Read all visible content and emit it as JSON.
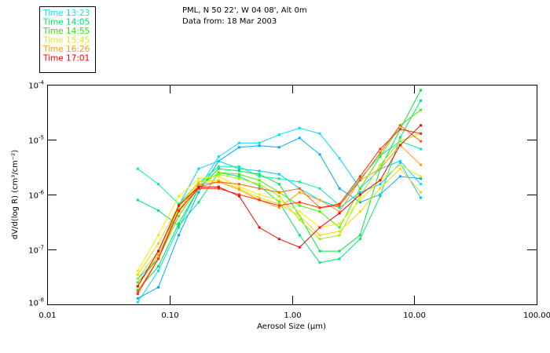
{
  "chart_data": {
    "type": "line",
    "title": "PML, N 50 22', W 04 08', Alt 0m",
    "subtitle": "Data from: 18 Mar 2003",
    "xlabel": "Aerosol Size (µm)",
    "ylabel": "dV/d(log R) (cm³/cm⁻²)",
    "xscale": "log",
    "yscale": "log",
    "xlim": [
      0.01,
      100
    ],
    "ylim_log10": [
      -8,
      -4
    ],
    "xticks": [
      "0.01",
      "0.10",
      "1.00",
      "10.00",
      "100.00"
    ],
    "xtick_values": [
      0.01,
      0.1,
      1,
      10,
      100
    ],
    "yticks": [
      {
        "base": "10",
        "exp": "-4",
        "log10": -4
      },
      {
        "base": "10",
        "exp": "-5",
        "log10": -5
      },
      {
        "base": "10",
        "exp": "-6",
        "log10": -6
      },
      {
        "base": "10",
        "exp": "-7",
        "log10": -7
      },
      {
        "base": "10",
        "exp": "-8",
        "log10": -8
      }
    ],
    "legend_placement": "top-left",
    "legend": [
      {
        "label": "Time 13:23",
        "color": "#00e8e8"
      },
      {
        "label": "Time 14:05",
        "color": "#00e060"
      },
      {
        "label": "Time 14:55",
        "color": "#30e000"
      },
      {
        "label": "Time 15:45",
        "color": "#d8f000"
      },
      {
        "label": "Time 16:26",
        "color": "#ff9a00"
      },
      {
        "label": "Time 17:01",
        "color": "#ff0000"
      }
    ],
    "x": [
      0.055,
      0.081,
      0.119,
      0.173,
      0.252,
      0.371,
      0.542,
      0.787,
      1.156,
      1.69,
      2.45,
      3.61,
      5.27,
      7.67,
      11.3
    ],
    "series_note": "values are log10 of dV/d(log R)",
    "series": [
      {
        "color": "#00ddff",
        "log10_values": [
          -7.96,
          -7.39,
          -6.6,
          -5.89,
          -5.31,
          -5.06,
          -5.06,
          -4.91,
          -4.79,
          -4.89,
          -5.34,
          -5.89,
          -5.53,
          -5.39,
          -5.81
        ]
      },
      {
        "color": "#00a8ff",
        "log10_values": [
          -7.89,
          -7.69,
          -6.74,
          -5.96,
          -5.39,
          -5.14,
          -5.11,
          -5.14,
          -4.97,
          -5.27,
          -5.89,
          -6.14,
          -6.0,
          -5.67,
          -5.71
        ]
      },
      {
        "color": "#00ccff",
        "log10_values": [
          -7.53,
          -7.17,
          -6.2,
          -5.53,
          -5.39,
          -5.53,
          -5.57,
          -5.63,
          -5.89,
          -6.1,
          -6.24,
          -5.96,
          -5.81,
          -5.43,
          -6.06
        ]
      },
      {
        "color": "#00f0a0",
        "log10_values": [
          -5.53,
          -5.81,
          -6.17,
          -5.79,
          -5.49,
          -5.49,
          -5.67,
          -5.71,
          -5.77,
          -5.89,
          -6.2,
          -5.71,
          -5.29,
          -5.03,
          -5.17
        ]
      },
      {
        "color": "#00e878",
        "log10_values": [
          -6.1,
          -6.29,
          -6.57,
          -6.14,
          -5.6,
          -5.67,
          -5.84,
          -6.14,
          -6.74,
          -7.24,
          -7.17,
          -6.81,
          -6.03,
          -4.96,
          -4.29
        ]
      },
      {
        "color": "#00e840",
        "log10_values": [
          -7.74,
          -7.31,
          -6.53,
          -5.89,
          -5.53,
          -5.57,
          -5.63,
          -5.81,
          -6.39,
          -7.03,
          -7.03,
          -6.74,
          -5.53,
          -4.81,
          -4.1
        ]
      },
      {
        "color": "#40f000",
        "log10_values": [
          -7.6,
          -7.17,
          -6.39,
          -5.86,
          -5.6,
          -5.63,
          -5.74,
          -5.96,
          -6.2,
          -6.31,
          -6.6,
          -5.89,
          -5.31,
          -4.74,
          -4.46
        ]
      },
      {
        "color": "#a0f000",
        "log10_values": [
          -7.53,
          -7.03,
          -6.24,
          -5.77,
          -5.63,
          -5.71,
          -5.81,
          -6.03,
          -6.46,
          -6.81,
          -6.74,
          -6.03,
          -5.46,
          -5.03,
          -4.89
        ]
      },
      {
        "color": "#f0f000",
        "log10_values": [
          -7.39,
          -6.74,
          -6.03,
          -5.71,
          -5.67,
          -5.86,
          -6.0,
          -6.1,
          -6.31,
          -6.6,
          -6.53,
          -6.1,
          -5.74,
          -5.46,
          -5.67
        ]
      },
      {
        "color": "#ffd000",
        "log10_values": [
          -7.46,
          -6.89,
          -6.2,
          -5.77,
          -5.74,
          -5.89,
          -6.06,
          -6.17,
          -6.39,
          -6.74,
          -6.67,
          -6.31,
          -5.89,
          -5.53,
          -5.96
        ]
      },
      {
        "color": "#ffa000",
        "log10_values": [
          -7.67,
          -7.1,
          -6.29,
          -5.81,
          -5.77,
          -5.91,
          -6.1,
          -6.24,
          -5.96,
          -6.1,
          -6.31,
          -5.74,
          -5.53,
          -5.1,
          -5.46
        ]
      },
      {
        "color": "#ff6000",
        "log10_values": [
          -7.77,
          -7.17,
          -6.31,
          -5.86,
          -5.77,
          -5.81,
          -5.89,
          -5.96,
          -5.89,
          -6.24,
          -6.2,
          -5.74,
          -5.24,
          -4.74,
          -5.03
        ]
      },
      {
        "color": "#ff3000",
        "log10_values": [
          -7.81,
          -7.17,
          -6.29,
          -5.89,
          -5.89,
          -6.0,
          -6.1,
          -6.2,
          -6.14,
          -6.24,
          -6.17,
          -5.67,
          -5.17,
          -4.81,
          -4.89
        ]
      },
      {
        "color": "#ff0000",
        "log10_values": [
          -7.67,
          -7.03,
          -6.2,
          -5.86,
          -5.86,
          -6.03,
          -6.6,
          -6.81,
          -6.96,
          -6.6,
          -6.34,
          -6.0,
          -5.74,
          -5.1,
          -4.74
        ]
      }
    ]
  }
}
